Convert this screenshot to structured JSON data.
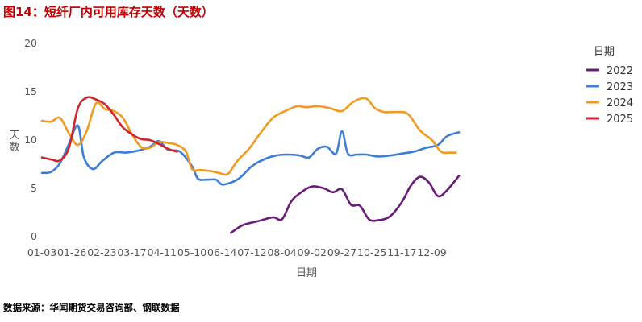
{
  "figure": {
    "title": "图14：短纤厂内可用库存天数（天数）",
    "source": "数据来源：华闻期货交易咨询部、钢联数据"
  },
  "chart_data": {
    "type": "line",
    "xlabel": "日期",
    "ylabel": "天数",
    "legend_title": "日期",
    "legend_position": "right",
    "grid": false,
    "x_ticks": [
      "01-03",
      "01-26",
      "02-23",
      "03-17",
      "04-11",
      "05-10",
      "06-14",
      "07-12",
      "08-04",
      "09-02",
      "09-27",
      "10-25",
      "11-17",
      "12-09"
    ],
    "y_ticks": [
      0,
      5,
      10,
      15,
      20
    ],
    "ylim": [
      -0.5,
      20.5
    ],
    "series": [
      {
        "name": "2022",
        "color": "#6a1b7a",
        "points": [
          [
            6.3,
            0.4
          ],
          [
            6.7,
            1.2
          ],
          [
            7.2,
            1.6
          ],
          [
            7.7,
            2.0
          ],
          [
            8.0,
            1.8
          ],
          [
            8.3,
            3.6
          ],
          [
            8.6,
            4.5
          ],
          [
            9.0,
            5.2
          ],
          [
            9.4,
            5.0
          ],
          [
            9.7,
            4.6
          ],
          [
            10.0,
            4.9
          ],
          [
            10.3,
            3.3
          ],
          [
            10.6,
            3.2
          ],
          [
            10.9,
            1.8
          ],
          [
            11.2,
            1.7
          ],
          [
            11.6,
            2.1
          ],
          [
            12.0,
            3.6
          ],
          [
            12.3,
            5.3
          ],
          [
            12.6,
            6.2
          ],
          [
            12.9,
            5.6
          ],
          [
            13.2,
            4.2
          ],
          [
            13.5,
            4.8
          ],
          [
            13.9,
            6.3
          ]
        ]
      },
      {
        "name": "2023",
        "color": "#3b7dd8",
        "points": [
          [
            0,
            6.6
          ],
          [
            0.3,
            6.7
          ],
          [
            0.6,
            7.6
          ],
          [
            0.9,
            9.6
          ],
          [
            1.2,
            11.5
          ],
          [
            1.4,
            8.2
          ],
          [
            1.7,
            7.0
          ],
          [
            2.0,
            7.8
          ],
          [
            2.4,
            8.7
          ],
          [
            2.8,
            8.7
          ],
          [
            3.2,
            8.9
          ],
          [
            3.6,
            9.3
          ],
          [
            3.9,
            9.9
          ],
          [
            4.2,
            9.0
          ],
          [
            4.6,
            8.8
          ],
          [
            5.0,
            7.3
          ],
          [
            5.2,
            6.0
          ],
          [
            5.5,
            5.9
          ],
          [
            5.8,
            5.9
          ],
          [
            6.0,
            5.4
          ],
          [
            6.3,
            5.6
          ],
          [
            6.6,
            6.1
          ],
          [
            7.0,
            7.3
          ],
          [
            7.4,
            8.0
          ],
          [
            7.8,
            8.4
          ],
          [
            8.2,
            8.5
          ],
          [
            8.6,
            8.4
          ],
          [
            8.9,
            8.2
          ],
          [
            9.2,
            9.1
          ],
          [
            9.5,
            9.3
          ],
          [
            9.8,
            8.6
          ],
          [
            10.0,
            10.9
          ],
          [
            10.2,
            8.6
          ],
          [
            10.5,
            8.5
          ],
          [
            10.8,
            8.5
          ],
          [
            11.2,
            8.3
          ],
          [
            11.6,
            8.4
          ],
          [
            12.0,
            8.6
          ],
          [
            12.4,
            8.8
          ],
          [
            12.8,
            9.2
          ],
          [
            13.2,
            9.5
          ],
          [
            13.5,
            10.4
          ],
          [
            13.9,
            10.8
          ]
        ]
      },
      {
        "name": "2024",
        "color": "#f39a1e",
        "points": [
          [
            0,
            12.0
          ],
          [
            0.3,
            11.9
          ],
          [
            0.6,
            12.3
          ],
          [
            0.9,
            10.7
          ],
          [
            1.2,
            9.5
          ],
          [
            1.5,
            11.0
          ],
          [
            1.8,
            13.8
          ],
          [
            2.1,
            13.2
          ],
          [
            2.4,
            13.0
          ],
          [
            2.7,
            12.3
          ],
          [
            3.0,
            10.6
          ],
          [
            3.3,
            9.3
          ],
          [
            3.6,
            9.2
          ],
          [
            3.9,
            9.8
          ],
          [
            4.2,
            9.7
          ],
          [
            4.5,
            9.5
          ],
          [
            4.8,
            8.8
          ],
          [
            5.0,
            7.0
          ],
          [
            5.3,
            6.9
          ],
          [
            5.6,
            6.8
          ],
          [
            5.9,
            6.6
          ],
          [
            6.2,
            6.5
          ],
          [
            6.5,
            7.8
          ],
          [
            6.9,
            9.1
          ],
          [
            7.3,
            10.8
          ],
          [
            7.7,
            12.3
          ],
          [
            8.1,
            13.0
          ],
          [
            8.5,
            13.5
          ],
          [
            8.8,
            13.4
          ],
          [
            9.2,
            13.5
          ],
          [
            9.6,
            13.3
          ],
          [
            10.0,
            13.0
          ],
          [
            10.4,
            14.0
          ],
          [
            10.8,
            14.3
          ],
          [
            11.1,
            13.3
          ],
          [
            11.4,
            12.9
          ],
          [
            11.8,
            12.9
          ],
          [
            12.2,
            12.7
          ],
          [
            12.6,
            11.0
          ],
          [
            13.0,
            10.0
          ],
          [
            13.3,
            8.8
          ],
          [
            13.6,
            8.7
          ],
          [
            13.8,
            8.7
          ]
        ]
      },
      {
        "name": "2025",
        "color": "#d0262b",
        "points": [
          [
            0,
            8.2
          ],
          [
            0.3,
            8.0
          ],
          [
            0.6,
            7.9
          ],
          [
            0.9,
            9.2
          ],
          [
            1.2,
            13.3
          ],
          [
            1.5,
            14.4
          ],
          [
            1.8,
            14.2
          ],
          [
            2.1,
            13.7
          ],
          [
            2.4,
            12.6
          ],
          [
            2.7,
            11.3
          ],
          [
            3.0,
            10.6
          ],
          [
            3.3,
            10.1
          ],
          [
            3.6,
            10.0
          ],
          [
            3.9,
            9.6
          ],
          [
            4.2,
            9.1
          ],
          [
            4.5,
            8.8
          ]
        ]
      }
    ]
  }
}
